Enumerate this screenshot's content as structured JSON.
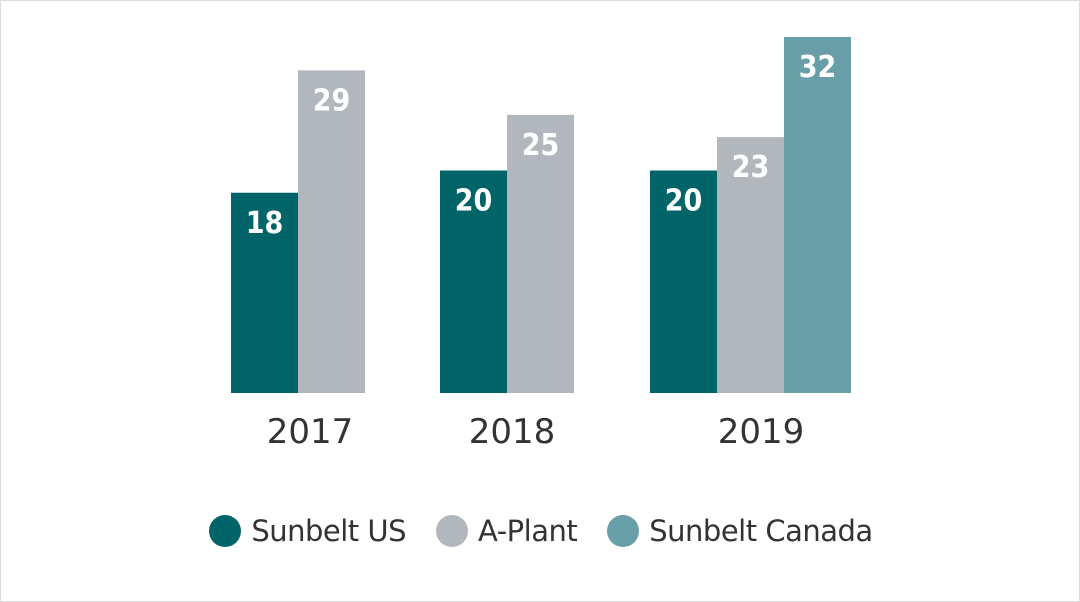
{
  "chart_data": {
    "type": "bar",
    "categories": [
      "2017",
      "2018",
      "2019"
    ],
    "series": [
      {
        "name": "Sunbelt US",
        "color": "#006468",
        "values": [
          18,
          20,
          20
        ]
      },
      {
        "name": "A-Plant",
        "color": "#b2b7be",
        "values": [
          29,
          25,
          23
        ]
      },
      {
        "name": "Sunbelt Canada",
        "color": "#689ea7",
        "values": [
          null,
          null,
          32
        ]
      }
    ],
    "title": "",
    "xlabel": "",
    "ylabel": "",
    "ylim": [
      0,
      32
    ],
    "grid": false,
    "legend_position": "bottom"
  },
  "legend": {
    "items": [
      {
        "label": "Sunbelt US",
        "color": "#006468"
      },
      {
        "label": "A-Plant",
        "color": "#b2b7be"
      },
      {
        "label": "Sunbelt Canada",
        "color": "#689ea7"
      }
    ]
  }
}
